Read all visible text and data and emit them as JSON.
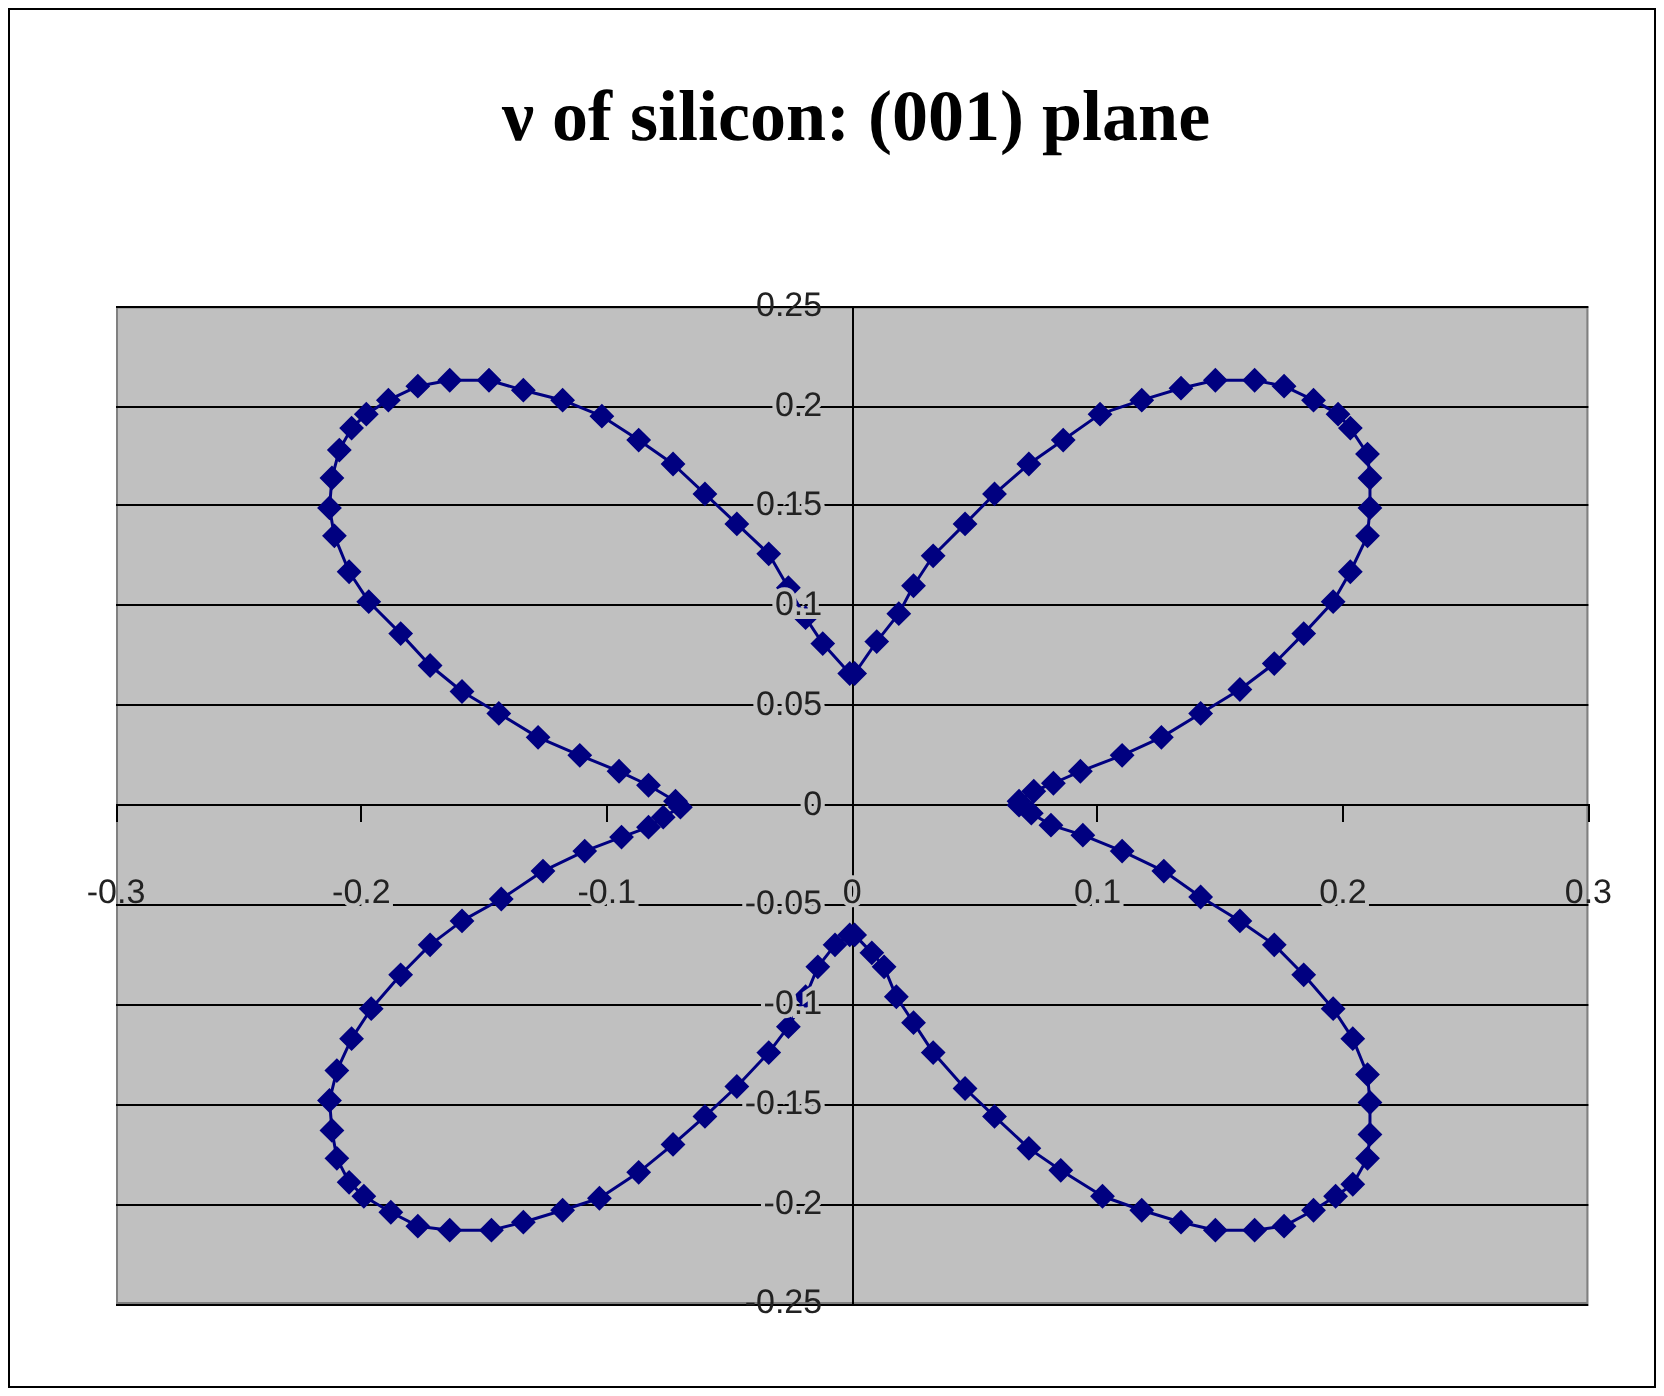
{
  "chart_data": {
    "type": "line",
    "title": "ν of silicon: (001) plane",
    "marker": "diamond",
    "line_style": "solid",
    "grid": "y",
    "xlim": [
      -0.3,
      0.3
    ],
    "xticks": [
      -0.3,
      -0.2,
      -0.1,
      0,
      0.1,
      0.2,
      0.3
    ],
    "ylim": [
      -0.25,
      0.25
    ],
    "yticks": [
      -0.25,
      -0.2,
      -0.15,
      -0.1,
      -0.05,
      0,
      0.05,
      0.1,
      0.15,
      0.2,
      0.25
    ],
    "series": [
      {
        "color": "#000080",
        "x": [
          0.068,
          0.074,
          0.082,
          0.093,
          0.11,
          0.126,
          0.142,
          0.158,
          0.172,
          0.184,
          0.196,
          0.203,
          0.21,
          0.211,
          0.211,
          0.21,
          0.203,
          0.198,
          0.188,
          0.176,
          0.164,
          0.148,
          0.134,
          0.118,
          0.101,
          0.086,
          0.072,
          0.058,
          0.046,
          0.033,
          0.025,
          0.019,
          0.01,
          0.001,
          -0.001,
          -0.012,
          -0.019,
          -0.026,
          -0.034,
          -0.047,
          -0.06,
          -0.073,
          -0.087,
          -0.102,
          -0.118,
          -0.134,
          -0.148,
          -0.164,
          -0.177,
          -0.189,
          -0.198,
          -0.204,
          -0.209,
          -0.212,
          -0.213,
          -0.211,
          -0.205,
          -0.197,
          -0.184,
          -0.172,
          -0.159,
          -0.144,
          -0.128,
          -0.111,
          -0.095,
          -0.083,
          -0.072,
          -0.07,
          -0.077,
          -0.083,
          -0.094,
          -0.109,
          -0.126,
          -0.143,
          -0.159,
          -0.172,
          -0.184,
          -0.196,
          -0.204,
          -0.21,
          -0.213,
          -0.212,
          -0.21,
          -0.205,
          -0.199,
          -0.188,
          -0.177,
          -0.164,
          -0.147,
          -0.134,
          -0.118,
          -0.103,
          -0.087,
          -0.073,
          -0.06,
          -0.047,
          -0.034,
          -0.026,
          -0.019,
          -0.014,
          -0.007,
          -0.001,
          0.001,
          0.008,
          0.013,
          0.018,
          0.025,
          0.033,
          0.046,
          0.058,
          0.072,
          0.085,
          0.102,
          0.118,
          0.134,
          0.148,
          0.164,
          0.176,
          0.188,
          0.197,
          0.204,
          0.21,
          0.211,
          0.211,
          0.21,
          0.204,
          0.196,
          0.184,
          0.172,
          0.158,
          0.142,
          0.127,
          0.11,
          0.094,
          0.081,
          0.073,
          0.068
        ],
        "values": [
          0.002,
          0.007,
          0.011,
          0.017,
          0.025,
          0.034,
          0.046,
          0.058,
          0.071,
          0.086,
          0.102,
          0.117,
          0.135,
          0.149,
          0.164,
          0.176,
          0.189,
          0.196,
          0.203,
          0.21,
          0.213,
          0.213,
          0.209,
          0.203,
          0.196,
          0.183,
          0.171,
          0.156,
          0.141,
          0.125,
          0.11,
          0.096,
          0.082,
          0.066,
          0.066,
          0.081,
          0.094,
          0.109,
          0.126,
          0.141,
          0.156,
          0.171,
          0.183,
          0.195,
          0.203,
          0.208,
          0.213,
          0.213,
          0.21,
          0.203,
          0.196,
          0.189,
          0.178,
          0.164,
          0.149,
          0.135,
          0.117,
          0.102,
          0.086,
          0.07,
          0.057,
          0.046,
          0.034,
          0.025,
          0.017,
          0.01,
          0.002,
          -0.001,
          -0.006,
          -0.011,
          -0.016,
          -0.023,
          -0.033,
          -0.047,
          -0.058,
          -0.07,
          -0.085,
          -0.102,
          -0.117,
          -0.133,
          -0.148,
          -0.163,
          -0.177,
          -0.189,
          -0.196,
          -0.204,
          -0.211,
          -0.213,
          -0.213,
          -0.209,
          -0.203,
          -0.197,
          -0.184,
          -0.17,
          -0.156,
          -0.141,
          -0.124,
          -0.111,
          -0.096,
          -0.081,
          -0.07,
          -0.065,
          -0.065,
          -0.074,
          -0.081,
          -0.096,
          -0.109,
          -0.124,
          -0.142,
          -0.156,
          -0.172,
          -0.183,
          -0.196,
          -0.203,
          -0.209,
          -0.213,
          -0.213,
          -0.211,
          -0.203,
          -0.196,
          -0.19,
          -0.177,
          -0.165,
          -0.149,
          -0.135,
          -0.117,
          -0.102,
          -0.085,
          -0.07,
          -0.058,
          -0.046,
          -0.033,
          -0.023,
          -0.015,
          -0.01,
          -0.004,
          0.0
        ]
      }
    ]
  }
}
